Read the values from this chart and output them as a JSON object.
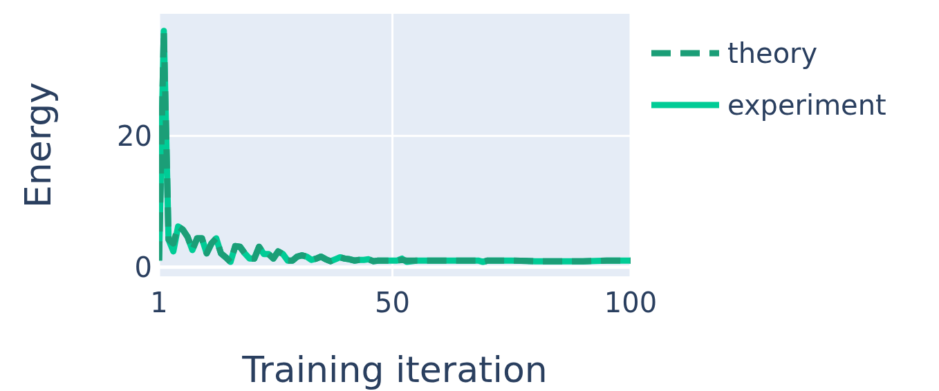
{
  "chart_data": {
    "type": "line",
    "xlabel": "Training iteration",
    "ylabel": "Energy",
    "x": [
      1,
      2,
      3,
      4,
      5,
      6,
      7,
      8,
      9,
      10,
      11,
      12,
      13,
      14,
      15,
      16,
      17,
      18,
      19,
      20,
      21,
      22,
      23,
      24,
      25,
      26,
      27,
      28,
      29,
      30,
      31,
      32,
      33,
      34,
      35,
      36,
      37,
      38,
      39,
      40,
      41,
      42,
      43,
      44,
      45,
      46,
      47,
      48,
      50,
      51,
      52,
      53,
      55,
      60,
      65,
      68,
      69,
      70,
      75,
      80,
      85,
      90,
      95,
      100
    ],
    "xlim": [
      1,
      100
    ],
    "xticks": [
      1,
      50,
      100
    ],
    "ylim": [
      -1.4,
      38.6
    ],
    "yticks": [
      0,
      20
    ],
    "grid": true,
    "legend": "top right",
    "marker": "none",
    "series": [
      {
        "name": "theory",
        "color": "#1b9e77",
        "line_style": "dashed",
        "values": [
          1.0,
          36.0,
          4.2,
          3.6,
          6.2,
          5.7,
          4.6,
          2.6,
          4.4,
          4.4,
          2.1,
          3.6,
          4.4,
          2.1,
          1.5,
          0.8,
          3.2,
          3.1,
          2.1,
          1.3,
          1.3,
          3.1,
          2.0,
          2.0,
          1.3,
          2.4,
          2.0,
          1.0,
          1.0,
          1.6,
          1.8,
          1.6,
          1.1,
          1.3,
          1.6,
          1.2,
          0.9,
          1.2,
          1.5,
          1.3,
          1.2,
          1.0,
          1.1,
          1.1,
          1.2,
          0.9,
          1.0,
          1.0,
          1.0,
          1.0,
          1.1,
          1.0,
          1.0,
          1.0,
          1.0,
          1.0,
          0.8,
          1.0,
          1.0,
          0.9,
          0.9,
          0.9,
          1.0,
          1.0
        ]
      },
      {
        "name": "experiment",
        "color": "#00cc96",
        "line_style": "solid",
        "values": [
          1.0,
          36.0,
          4.2,
          2.4,
          6.2,
          5.7,
          4.6,
          2.6,
          4.4,
          4.4,
          2.1,
          3.6,
          4.4,
          2.1,
          1.5,
          0.8,
          3.2,
          3.1,
          2.1,
          1.3,
          1.3,
          3.1,
          2.0,
          2.0,
          1.3,
          2.4,
          2.0,
          1.0,
          1.0,
          1.6,
          1.8,
          1.6,
          1.1,
          1.3,
          1.6,
          1.2,
          0.9,
          1.2,
          1.5,
          1.3,
          1.2,
          1.0,
          1.1,
          1.1,
          1.2,
          0.9,
          1.0,
          1.0,
          1.0,
          1.0,
          1.3,
          0.8,
          1.0,
          1.0,
          1.0,
          1.0,
          0.8,
          1.0,
          1.0,
          0.9,
          0.9,
          0.9,
          1.0,
          1.0
        ]
      }
    ]
  }
}
